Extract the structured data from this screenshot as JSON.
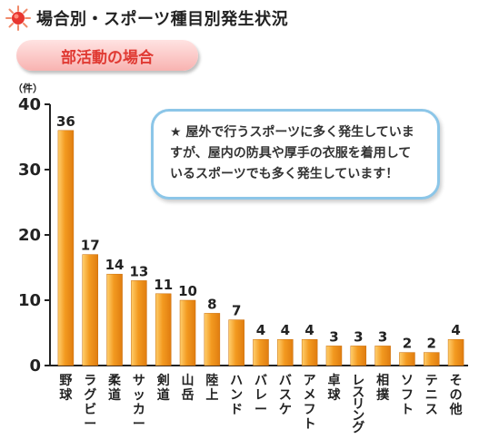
{
  "header": {
    "title": "場合別・スポーツ種目別発生状況",
    "tab_label": "部活動の場合"
  },
  "note": {
    "text": "★ 屋外で行うスポーツに多く発生していますが、屋内の防具や厚手の衣服を着用しているスポーツでも多く発生しています！"
  },
  "colors": {
    "bar_fill": "#f39a20",
    "bar_highlight": "#ffd27a",
    "axis": "#222222",
    "callout_border": "#8cc6e8",
    "tab_text": "#e03a33"
  },
  "chart_data": {
    "type": "bar",
    "unit_label": "（件）",
    "ylim": [
      0,
      40
    ],
    "yticks": [
      0,
      10,
      20,
      30,
      40
    ],
    "categories": [
      "野球",
      "ラグビー",
      "柔道",
      "サッカー",
      "剣道",
      "山岳",
      "陸上",
      "ハンド",
      "バレー",
      "バスケ",
      "アメフト",
      "卓球",
      "レスリング",
      "相撲",
      "ソフト",
      "テニス",
      "その他"
    ],
    "values": [
      36,
      17,
      14,
      13,
      11,
      10,
      8,
      7,
      4,
      4,
      4,
      3,
      3,
      3,
      2,
      2,
      4
    ],
    "grid": false,
    "legend": "none"
  }
}
